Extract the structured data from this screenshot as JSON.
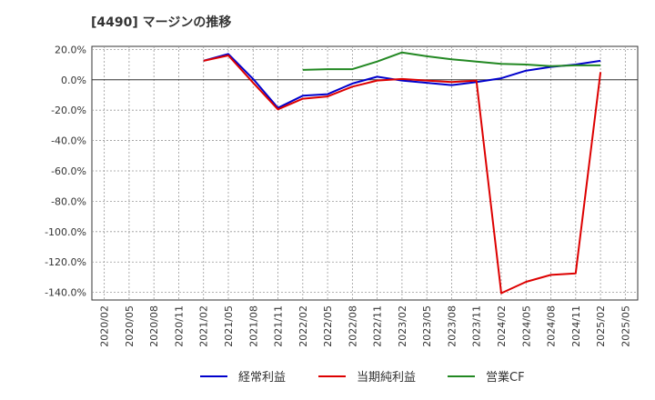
{
  "chart_data": {
    "type": "line",
    "title": "[4490]  マージンの推移",
    "xlabel": "",
    "ylabel": "",
    "ylim": [
      -145,
      22
    ],
    "yticks": [
      20,
      0,
      -20,
      -40,
      -60,
      -80,
      -100,
      -120,
      -140
    ],
    "ytick_labels": [
      "20.0%",
      "0.0%",
      "-20.0%",
      "-40.0%",
      "-60.0%",
      "-80.0%",
      "-100.0%",
      "-120.0%",
      "-140.0%"
    ],
    "x_categories": [
      "2020/02",
      "2020/05",
      "2020/08",
      "2020/11",
      "2021/02",
      "2021/05",
      "2021/08",
      "2021/11",
      "2022/02",
      "2022/05",
      "2022/08",
      "2022/11",
      "2023/02",
      "2023/05",
      "2023/08",
      "2023/11",
      "2024/02",
      "2024/05",
      "2024/08",
      "2024/11",
      "2025/02",
      "2025/05"
    ],
    "grid": true,
    "legend_position": "bottom",
    "series": [
      {
        "name": "経常利益",
        "color": "#0000cc",
        "values": [
          null,
          null,
          null,
          null,
          12.5,
          17.0,
          0.5,
          -18.5,
          -10.5,
          -9.5,
          -2.5,
          2.0,
          -0.5,
          -2.0,
          -3.5,
          -1.5,
          1.0,
          6.0,
          8.5,
          10.0,
          12.5,
          null
        ]
      },
      {
        "name": "当期純利益",
        "color": "#dd0000",
        "values": [
          null,
          null,
          null,
          null,
          12.5,
          16.0,
          -2.0,
          -19.5,
          -12.5,
          -11.0,
          -4.5,
          -0.5,
          0.5,
          -0.5,
          -1.5,
          -0.5,
          -140.5,
          -133.0,
          -128.5,
          -127.5,
          5.0,
          null
        ]
      },
      {
        "name": "営業CF",
        "color": "#228822",
        "values": [
          null,
          null,
          null,
          null,
          null,
          null,
          null,
          null,
          6.5,
          7.0,
          7.0,
          12.0,
          18.0,
          15.5,
          13.5,
          12.0,
          10.5,
          10.0,
          9.0,
          9.5,
          9.5,
          null
        ]
      }
    ]
  }
}
